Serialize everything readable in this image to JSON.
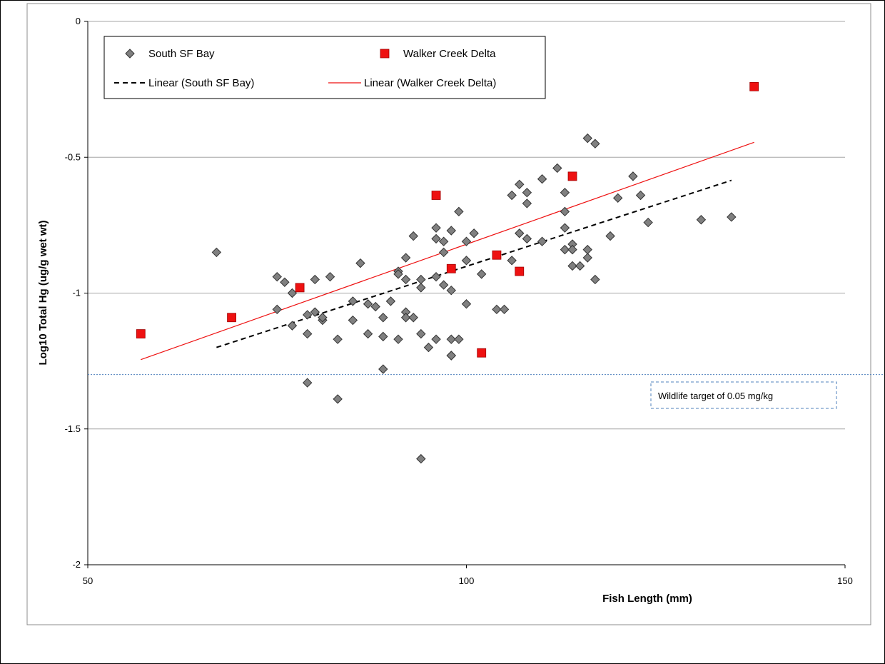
{
  "colors": {
    "south_marker": "#808080",
    "walker_marker": "#ee1111",
    "south_trend": "#000000",
    "walker_trend": "#ee1111",
    "target_line": "#4f81bd",
    "gridline": "#a6a6a6"
  },
  "chart_data": {
    "type": "scatter",
    "xlabel": "Fish Length (mm)",
    "ylabel": "Log10  Total Hg (ug/g wet wt)",
    "xlim": [
      50,
      150
    ],
    "ylim": [
      -2,
      0
    ],
    "x_ticks": [
      "50",
      "100",
      "150"
    ],
    "y_ticks": [
      "0",
      "-0.5",
      "-1",
      "-1.5",
      "-2"
    ],
    "grid": "horizontal",
    "legend_position": "top-left",
    "series": [
      {
        "name": "South SF Bay",
        "marker": "diamond",
        "points": [
          [
            67,
            -0.85
          ],
          [
            75,
            -0.94
          ],
          [
            75,
            -1.06
          ],
          [
            76,
            -0.96
          ],
          [
            77,
            -1.0
          ],
          [
            77,
            -1.12
          ],
          [
            79,
            -1.08
          ],
          [
            79,
            -1.15
          ],
          [
            79,
            -1.33
          ],
          [
            80,
            -0.95
          ],
          [
            80,
            -1.07
          ],
          [
            81,
            -1.1
          ],
          [
            81,
            -1.09
          ],
          [
            82,
            -0.94
          ],
          [
            83,
            -1.17
          ],
          [
            83,
            -1.39
          ],
          [
            85,
            -1.03
          ],
          [
            85,
            -1.1
          ],
          [
            86,
            -0.89
          ],
          [
            87,
            -1.04
          ],
          [
            87,
            -1.15
          ],
          [
            88,
            -1.05
          ],
          [
            89,
            -1.09
          ],
          [
            89,
            -1.16
          ],
          [
            89,
            -1.28
          ],
          [
            90,
            -1.03
          ],
          [
            91,
            -0.92
          ],
          [
            91,
            -0.93
          ],
          [
            91,
            -1.17
          ],
          [
            92,
            -0.87
          ],
          [
            92,
            -0.95
          ],
          [
            92,
            -1.07
          ],
          [
            92,
            -1.09
          ],
          [
            93,
            -0.79
          ],
          [
            93,
            -1.09
          ],
          [
            94,
            -0.95
          ],
          [
            94,
            -0.98
          ],
          [
            94,
            -1.15
          ],
          [
            94,
            -1.61
          ],
          [
            95,
            -1.2
          ],
          [
            96,
            -0.76
          ],
          [
            96,
            -0.8
          ],
          [
            96,
            -0.94
          ],
          [
            96,
            -1.17
          ],
          [
            97,
            -0.81
          ],
          [
            97,
            -0.85
          ],
          [
            97,
            -0.97
          ],
          [
            98,
            -0.77
          ],
          [
            98,
            -0.99
          ],
          [
            98,
            -1.17
          ],
          [
            98,
            -1.23
          ],
          [
            98,
            -1.23
          ],
          [
            99,
            -0.7
          ],
          [
            99,
            -1.17
          ],
          [
            100,
            -0.81
          ],
          [
            100,
            -0.88
          ],
          [
            100,
            -1.04
          ],
          [
            101,
            -0.78
          ],
          [
            102,
            -0.93
          ],
          [
            104,
            -1.06
          ],
          [
            105,
            -1.06
          ],
          [
            106,
            -0.64
          ],
          [
            106,
            -0.88
          ],
          [
            107,
            -0.6
          ],
          [
            107,
            -0.78
          ],
          [
            108,
            -0.63
          ],
          [
            108,
            -0.67
          ],
          [
            108,
            -0.8
          ],
          [
            110,
            -0.58
          ],
          [
            110,
            -0.81
          ],
          [
            112,
            -0.54
          ],
          [
            113,
            -0.63
          ],
          [
            113,
            -0.7
          ],
          [
            113,
            -0.76
          ],
          [
            113,
            -0.84
          ],
          [
            114,
            -0.82
          ],
          [
            114,
            -0.84
          ],
          [
            114,
            -0.9
          ],
          [
            115,
            -0.9
          ],
          [
            116,
            -0.43
          ],
          [
            116,
            -0.84
          ],
          [
            116,
            -0.87
          ],
          [
            117,
            -0.45
          ],
          [
            117,
            -0.95
          ],
          [
            119,
            -0.79
          ],
          [
            120,
            -0.65
          ],
          [
            122,
            -0.57
          ],
          [
            123,
            -0.64
          ],
          [
            124,
            -0.74
          ],
          [
            131,
            -0.73
          ],
          [
            135,
            -0.72
          ]
        ]
      },
      {
        "name": "Walker Creek Delta",
        "marker": "square",
        "points": [
          [
            57,
            -1.15
          ],
          [
            69,
            -1.09
          ],
          [
            78,
            -0.98
          ],
          [
            96,
            -0.64
          ],
          [
            98,
            -0.91
          ],
          [
            102,
            -1.22
          ],
          [
            104,
            -0.86
          ],
          [
            107,
            -0.92
          ],
          [
            114,
            -0.57
          ],
          [
            138,
            -0.24
          ]
        ]
      }
    ],
    "trendlines": [
      {
        "name": "Linear (South SF Bay)",
        "style": "dashed",
        "x": [
          67,
          135
        ],
        "y": [
          -1.2,
          -0.585
        ]
      },
      {
        "name": "Linear (Walker Creek Delta)",
        "style": "solid",
        "x": [
          57,
          138
        ],
        "y": [
          -1.245,
          -0.445
        ]
      }
    ],
    "reference_line": {
      "y": -1.3,
      "style": "dotted",
      "label": "Wildlife target of 0.05 mg/kg"
    }
  }
}
